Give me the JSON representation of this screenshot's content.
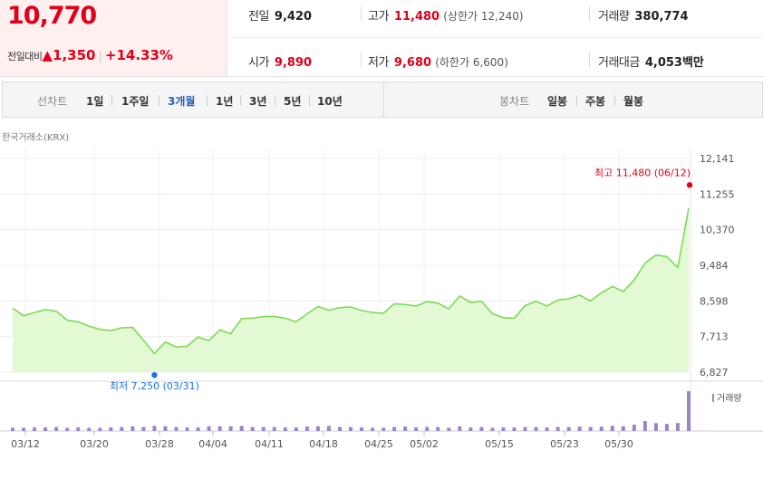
{
  "price": {
    "current": "10,770",
    "change_label": "전일대비",
    "change_arrow": "▲",
    "change": "1,350",
    "change_pct": "+14.33%"
  },
  "stats": {
    "prev_close_label": "전일",
    "prev_close": "9,420",
    "high_label": "고가",
    "high": "11,480",
    "upper_limit_label": "상한가",
    "upper_limit": "12,240",
    "volume_label": "거래량",
    "volume": "380,774",
    "open_label": "시가",
    "open": "9,890",
    "low_label": "저가",
    "low": "9,680",
    "lower_limit_label": "하한가",
    "lower_limit": "6,600",
    "amount_label": "거래대금",
    "amount": "4,053",
    "amount_unit": "백만"
  },
  "tabs": {
    "line_chart_label": "선차트",
    "periods": [
      "1일",
      "1주일",
      "3개월",
      "1년",
      "3년",
      "5년",
      "10년"
    ],
    "active_period": "3개월",
    "candle_chart_label": "봉차트",
    "candle_periods": [
      "일봉",
      "주봉",
      "월봉"
    ]
  },
  "exchange_label": "한국거래소(KRX)",
  "colors": {
    "up": "#e0001a",
    "line": "#7ed957",
    "area": "#e3f9d4",
    "volume": "#9a86c6",
    "low_marker": "#1a73e8"
  },
  "chart_data": {
    "type": "line",
    "x_tick_labels": [
      "03/12",
      "03/20",
      "03/28",
      "04/04",
      "04/11",
      "04/18",
      "04/25",
      "05/02",
      "05/15",
      "05/23",
      "05/30"
    ],
    "y_tick_labels": [
      "12,141",
      "11,255",
      "10,370",
      "9,484",
      "8,598",
      "7,713",
      "6,827"
    ],
    "ylim": [
      6827,
      12141
    ],
    "grid": true,
    "high_annotation": "최고 11,480 (06/12)",
    "high_value": 11480,
    "low_annotation": "최저 7,250 (03/31)",
    "low_value": 7250,
    "volume_legend": "거래량",
    "price_series": [
      8420,
      8230,
      8310,
      8380,
      8340,
      8120,
      8080,
      7970,
      7890,
      7860,
      7930,
      7940,
      7620,
      7290,
      7580,
      7450,
      7470,
      7700,
      7610,
      7880,
      7780,
      8160,
      8170,
      8210,
      8210,
      8170,
      8080,
      8280,
      8460,
      8370,
      8430,
      8450,
      8360,
      8310,
      8290,
      8530,
      8510,
      8470,
      8580,
      8540,
      8400,
      8720,
      8560,
      8590,
      8280,
      8180,
      8170,
      8480,
      8590,
      8470,
      8620,
      8650,
      8740,
      8600,
      8800,
      8960,
      8830,
      9120,
      9540,
      9740,
      9700,
      9430,
      10900
    ],
    "volume_series": [
      0.08,
      0.08,
      0.09,
      0.09,
      0.1,
      0.08,
      0.09,
      0.08,
      0.08,
      0.09,
      0.1,
      0.12,
      0.1,
      0.13,
      0.12,
      0.1,
      0.09,
      0.09,
      0.12,
      0.12,
      0.12,
      0.13,
      0.1,
      0.1,
      0.1,
      0.09,
      0.09,
      0.11,
      0.12,
      0.13,
      0.1,
      0.1,
      0.09,
      0.08,
      0.08,
      0.1,
      0.11,
      0.09,
      0.1,
      0.1,
      0.08,
      0.12,
      0.09,
      0.1,
      0.08,
      0.09,
      0.09,
      0.1,
      0.1,
      0.09,
      0.1,
      0.1,
      0.11,
      0.1,
      0.11,
      0.13,
      0.12,
      0.16,
      0.25,
      0.2,
      0.18,
      0.2,
      1.0
    ]
  }
}
